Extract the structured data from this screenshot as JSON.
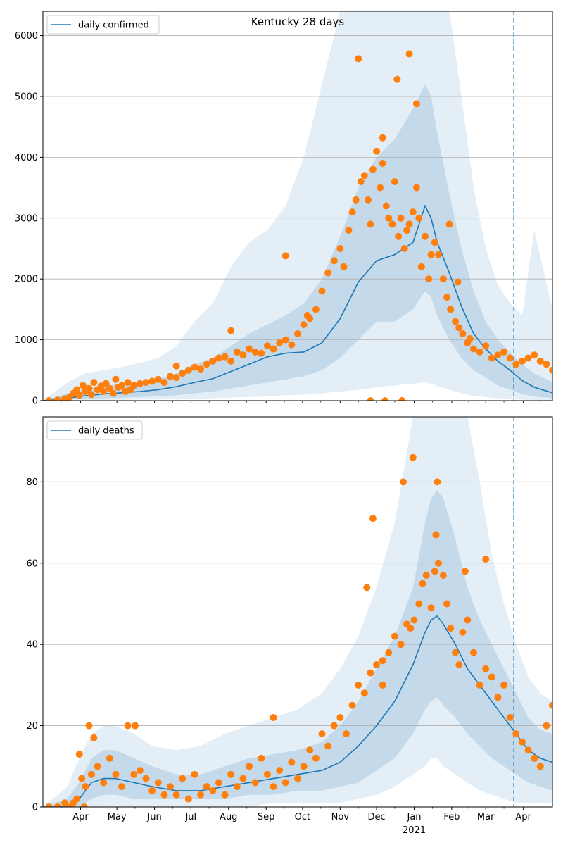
{
  "chart_data": [
    {
      "type": "line",
      "title": "Kentucky 28 days",
      "legend": "daily confirmed",
      "legend_position": "top-left",
      "grid": "horizontal",
      "ylim": [
        0,
        6400
      ],
      "yticks": [
        0,
        1000,
        2000,
        3000,
        4000,
        5000,
        6000
      ],
      "xlim_days": [
        0,
        420
      ],
      "xticks": [
        {
          "day": 31,
          "label": "Apr"
        },
        {
          "day": 61,
          "label": "May"
        },
        {
          "day": 92,
          "label": "Jun"
        },
        {
          "day": 122,
          "label": "Jul"
        },
        {
          "day": 153,
          "label": "Aug"
        },
        {
          "day": 184,
          "label": "Sep"
        },
        {
          "day": 214,
          "label": "Oct"
        },
        {
          "day": 245,
          "label": "Nov"
        },
        {
          "day": 275,
          "label": "Dec"
        },
        {
          "day": 306,
          "label": "Jan"
        },
        {
          "day": 337,
          "label": "Feb"
        },
        {
          "day": 365,
          "label": "Mar"
        },
        {
          "day": 396,
          "label": "Apr"
        }
      ],
      "minor_ticks": [
        15,
        46,
        76,
        107,
        137,
        168,
        199,
        229,
        260,
        290,
        321,
        351,
        380,
        410
      ],
      "forecast_line_day": 388,
      "line": {
        "x": [
          0,
          20,
          35,
          50,
          65,
          80,
          95,
          110,
          125,
          140,
          155,
          170,
          185,
          200,
          215,
          230,
          245,
          260,
          275,
          290,
          305,
          315,
          320,
          325,
          335,
          345,
          355,
          365,
          375,
          385,
          395,
          405,
          420
        ],
        "y": [
          0,
          40,
          80,
          110,
          130,
          150,
          180,
          230,
          300,
          360,
          480,
          600,
          720,
          780,
          800,
          950,
          1350,
          1950,
          2300,
          2400,
          2600,
          3200,
          3000,
          2600,
          2100,
          1550,
          1100,
          850,
          650,
          500,
          330,
          220,
          130
        ]
      },
      "band_inner": {
        "upper": [
          0,
          120,
          200,
          250,
          270,
          300,
          350,
          450,
          600,
          700,
          900,
          1100,
          1250,
          1400,
          1600,
          2000,
          2700,
          3500,
          4000,
          4300,
          4800,
          5200,
          5000,
          4400,
          3400,
          2500,
          1800,
          1300,
          1000,
          800,
          600,
          450,
          300
        ],
        "lower": [
          0,
          20,
          30,
          40,
          50,
          60,
          70,
          90,
          120,
          150,
          200,
          250,
          300,
          350,
          400,
          500,
          700,
          1000,
          1300,
          1300,
          1500,
          1800,
          1700,
          1400,
          1000,
          700,
          500,
          380,
          250,
          180,
          110,
          70,
          40
        ]
      },
      "band_outer": {
        "upper": [
          0,
          300,
          450,
          500,
          550,
          620,
          700,
          900,
          1300,
          1600,
          2200,
          2600,
          2800,
          3200,
          4000,
          5200,
          6500,
          6400,
          6400,
          6400,
          6400,
          6400,
          6400,
          6400,
          6400,
          5000,
          3500,
          2500,
          1900,
          1600,
          1400,
          2800,
          1500
        ],
        "lower": [
          0,
          5,
          10,
          10,
          15,
          20,
          20,
          25,
          30,
          40,
          50,
          60,
          70,
          90,
          100,
          120,
          150,
          180,
          220,
          250,
          280,
          300,
          280,
          240,
          180,
          120,
          80,
          60,
          40,
          25,
          15,
          10,
          5
        ]
      },
      "observed": {
        "x": [
          5,
          12,
          18,
          22,
          25,
          28,
          30,
          33,
          35,
          38,
          40,
          42,
          45,
          48,
          50,
          52,
          55,
          58,
          60,
          62,
          65,
          68,
          70,
          72,
          75,
          80,
          85,
          90,
          95,
          100,
          105,
          110,
          115,
          120,
          125,
          130,
          135,
          140,
          145,
          150,
          155,
          160,
          165,
          170,
          175,
          180,
          185,
          190,
          195,
          200,
          205,
          210,
          215,
          220,
          225,
          230,
          235,
          240,
          245,
          248,
          252,
          255,
          258,
          262,
          265,
          268,
          270,
          272,
          275,
          278,
          280,
          283,
          285,
          288,
          290,
          293,
          295,
          298,
          300,
          302,
          305,
          308,
          310,
          312,
          315,
          318,
          320,
          323,
          326,
          330,
          333,
          336,
          340,
          343,
          346,
          350,
          355,
          360,
          365,
          370,
          375,
          380,
          385,
          390,
          395,
          400,
          405,
          410,
          415,
          420,
          260,
          280,
          292,
          302,
          308,
          270,
          335,
          342,
          352,
          282,
          296,
          200,
          218,
          155,
          110
        ],
        "y": [
          0,
          10,
          30,
          60,
          120,
          180,
          90,
          250,
          150,
          200,
          100,
          300,
          180,
          240,
          150,
          280,
          200,
          120,
          350,
          220,
          250,
          150,
          300,
          180,
          250,
          280,
          300,
          320,
          350,
          300,
          400,
          380,
          450,
          500,
          550,
          520,
          600,
          650,
          700,
          720,
          650,
          800,
          750,
          850,
          800,
          780,
          900,
          850,
          950,
          1000,
          920,
          1100,
          1250,
          1350,
          1500,
          1800,
          2100,
          2300,
          2500,
          2200,
          2800,
          3100,
          3300,
          3600,
          3700,
          3300,
          2900,
          3800,
          4100,
          3500,
          3900,
          3200,
          3000,
          2900,
          3600,
          2700,
          3000,
          2500,
          2800,
          2900,
          3100,
          3500,
          3000,
          2200,
          2700,
          2000,
          2400,
          2600,
          2400,
          2000,
          1700,
          1500,
          1300,
          1200,
          1100,
          950,
          850,
          800,
          900,
          700,
          750,
          800,
          700,
          600,
          650,
          700,
          750,
          650,
          600,
          500,
          5620,
          4320,
          5280,
          5700,
          4880,
          0,
          2900,
          1950,
          1020,
          0,
          0,
          2380,
          1400,
          1150,
          570
        ]
      }
    },
    {
      "type": "line",
      "title": "",
      "legend": "daily deaths",
      "legend_position": "top-left",
      "grid": "horizontal",
      "ylim": [
        0,
        96
      ],
      "yticks": [
        0,
        20,
        40,
        60,
        80
      ],
      "xlim_days": [
        0,
        420
      ],
      "xticks": [
        {
          "day": 31,
          "label": "Apr"
        },
        {
          "day": 61,
          "label": "May"
        },
        {
          "day": 92,
          "label": "Jun"
        },
        {
          "day": 122,
          "label": "Jul"
        },
        {
          "day": 153,
          "label": "Aug"
        },
        {
          "day": 184,
          "label": "Sep"
        },
        {
          "day": 214,
          "label": "Oct"
        },
        {
          "day": 245,
          "label": "Nov"
        },
        {
          "day": 275,
          "label": "Dec"
        },
        {
          "day": 306,
          "label": "Jan"
        },
        {
          "day": 337,
          "label": "Feb"
        },
        {
          "day": 365,
          "label": "Mar"
        },
        {
          "day": 396,
          "label": "Apr"
        }
      ],
      "year_label": {
        "day": 306,
        "label": "2021"
      },
      "minor_ticks": [
        15,
        46,
        76,
        107,
        137,
        168,
        199,
        229,
        260,
        290,
        321,
        351,
        380,
        410
      ],
      "forecast_line_day": 388,
      "line": {
        "x": [
          0,
          20,
          30,
          40,
          50,
          60,
          75,
          90,
          110,
          130,
          150,
          170,
          190,
          210,
          230,
          245,
          260,
          275,
          290,
          305,
          315,
          320,
          325,
          330,
          340,
          350,
          360,
          370,
          380,
          390,
          400,
          410,
          420
        ],
        "y": [
          0,
          0,
          2,
          6,
          7,
          7,
          6,
          5,
          4,
          4,
          5,
          6,
          7,
          8,
          9,
          11,
          15,
          20,
          26,
          35,
          43,
          46,
          47,
          45,
          40,
          34,
          30,
          26,
          22,
          18,
          14,
          12,
          11
        ]
      },
      "band_inner": {
        "upper": [
          0,
          2,
          6,
          12,
          14,
          14,
          12,
          10,
          8,
          8,
          10,
          12,
          13,
          14,
          16,
          20,
          26,
          34,
          42,
          54,
          70,
          76,
          78,
          76,
          66,
          54,
          46,
          40,
          34,
          28,
          22,
          19,
          18
        ],
        "lower": [
          0,
          0,
          0,
          2,
          3,
          3,
          2,
          2,
          2,
          2,
          2,
          3,
          3,
          4,
          4,
          5,
          6,
          9,
          12,
          18,
          24,
          26,
          27,
          25,
          22,
          18,
          15,
          12,
          10,
          8,
          6,
          5,
          4
        ]
      },
      "band_outer": {
        "upper": [
          0,
          5,
          12,
          18,
          20,
          20,
          18,
          15,
          14,
          15,
          18,
          20,
          22,
          24,
          28,
          34,
          42,
          54,
          70,
          96,
          96,
          96,
          96,
          96,
          96,
          96,
          80,
          62,
          50,
          40,
          32,
          28,
          26
        ],
        "lower": [
          0,
          0,
          0,
          0,
          0,
          0,
          0,
          0,
          0,
          0,
          0,
          0,
          1,
          1,
          1,
          1,
          2,
          3,
          5,
          8,
          10,
          12,
          12,
          10,
          8,
          6,
          4,
          3,
          2,
          1,
          1,
          1,
          1
        ]
      },
      "observed": {
        "x": [
          5,
          12,
          18,
          22,
          25,
          28,
          30,
          32,
          35,
          38,
          40,
          42,
          45,
          50,
          55,
          60,
          65,
          70,
          75,
          80,
          85,
          90,
          95,
          100,
          105,
          110,
          115,
          120,
          125,
          130,
          135,
          140,
          145,
          150,
          155,
          160,
          165,
          170,
          175,
          180,
          185,
          190,
          195,
          200,
          205,
          210,
          215,
          220,
          225,
          230,
          235,
          240,
          245,
          250,
          255,
          260,
          265,
          270,
          275,
          280,
          285,
          290,
          295,
          300,
          303,
          306,
          310,
          313,
          316,
          320,
          323,
          326,
          330,
          333,
          336,
          340,
          343,
          346,
          350,
          355,
          360,
          365,
          370,
          375,
          380,
          385,
          390,
          395,
          400,
          405,
          410,
          415,
          420,
          305,
          297,
          325,
          324,
          272,
          267,
          280,
          348,
          365,
          190,
          76,
          34
        ],
        "y": [
          0,
          0,
          1,
          0,
          1,
          2,
          13,
          7,
          5,
          20,
          8,
          17,
          10,
          6,
          12,
          8,
          5,
          20,
          8,
          9,
          7,
          4,
          6,
          3,
          5,
          3,
          7,
          2,
          8,
          3,
          5,
          4,
          6,
          3,
          8,
          5,
          7,
          10,
          6,
          12,
          8,
          5,
          9,
          6,
          11,
          7,
          10,
          14,
          12,
          18,
          15,
          20,
          22,
          18,
          25,
          30,
          28,
          33,
          35,
          30,
          38,
          42,
          40,
          45,
          44,
          46,
          50,
          55,
          57,
          49,
          58,
          60,
          57,
          50,
          44,
          38,
          35,
          43,
          46,
          38,
          30,
          34,
          32,
          27,
          30,
          22,
          18,
          16,
          14,
          12,
          10,
          20,
          25,
          86,
          80,
          80,
          67,
          71,
          54,
          36,
          58,
          61,
          22,
          20,
          0
        ]
      }
    }
  ]
}
